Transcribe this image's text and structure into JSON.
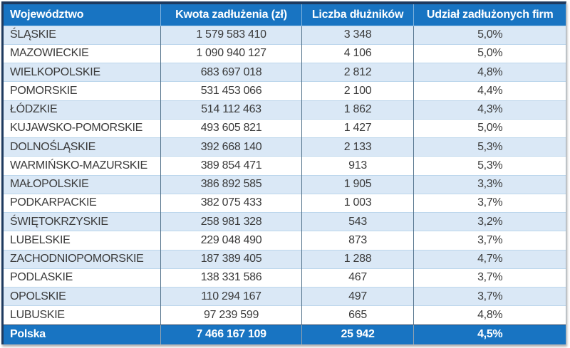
{
  "table": {
    "columns": [
      "Województwo",
      "Kwota zadłużenia (zł)",
      "Liczba dłużników",
      "Udział zadłużonych firm"
    ],
    "rows": [
      [
        "ŚLĄSKIE",
        "1 579 583 410",
        "3 348",
        "5,0%"
      ],
      [
        "MAZOWIECKIE",
        "1 090 940 127",
        "4 106",
        "5,0%"
      ],
      [
        "WIELKOPOLSKIE",
        "683 697 018",
        "2 812",
        "4,8%"
      ],
      [
        "POMORSKIE",
        "531 453 066",
        "2 100",
        "4,4%"
      ],
      [
        "ŁÓDZKIE",
        "514 112 463",
        "1 862",
        "4,3%"
      ],
      [
        "KUJAWSKO-POMORSKIE",
        "493 605 821",
        "1 427",
        "5,0%"
      ],
      [
        "DOLNOŚLĄSKIE",
        "392 668 140",
        "2 133",
        "5,3%"
      ],
      [
        "WARMIŃSKO-MAZURSKIE",
        "389 854 471",
        "913",
        "5,3%"
      ],
      [
        "MAŁOPOLSKIE",
        "386 892 585",
        "1 905",
        "3,3%"
      ],
      [
        "PODKARPACKIE",
        "382 075 433",
        "1 003",
        "3,7%"
      ],
      [
        "ŚWIĘTOKRZYSKIE",
        "258 981 328",
        "543",
        "3,2%"
      ],
      [
        "LUBELSKIE",
        "229 048 490",
        "873",
        "3,7%"
      ],
      [
        "ZACHODNIOPOMORSKIE",
        "187 389 405",
        "1 288",
        "4,7%"
      ],
      [
        "PODLASKIE",
        "138 331 586",
        "467",
        "3,7%"
      ],
      [
        "OPOLSKIE",
        "110 294 167",
        "497",
        "3,7%"
      ],
      [
        "LUBUSKIE",
        "97 239 599",
        "665",
        "4,8%"
      ]
    ],
    "footer": [
      "Polska",
      "7 466 167 109",
      "25 942",
      "4,5%"
    ]
  },
  "chart_data": {
    "type": "table",
    "title": "",
    "columns": [
      "Województwo",
      "Kwota zadłużenia (zł)",
      "Liczba dłużników",
      "Udział zadłużonych firm"
    ],
    "rows": [
      {
        "wojewodztwo": "ŚLĄSKIE",
        "kwota_zadluzenia_zl": 1579583410,
        "liczba_dluznikow": 3348,
        "udzial_zadluzonych_firm_pct": 5.0
      },
      {
        "wojewodztwo": "MAZOWIECKIE",
        "kwota_zadluzenia_zl": 1090940127,
        "liczba_dluznikow": 4106,
        "udzial_zadluzonych_firm_pct": 5.0
      },
      {
        "wojewodztwo": "WIELKOPOLSKIE",
        "kwota_zadluzenia_zl": 683697018,
        "liczba_dluznikow": 2812,
        "udzial_zadluzonych_firm_pct": 4.8
      },
      {
        "wojewodztwo": "POMORSKIE",
        "kwota_zadluzenia_zl": 531453066,
        "liczba_dluznikow": 2100,
        "udzial_zadluzonych_firm_pct": 4.4
      },
      {
        "wojewodztwo": "ŁÓDZKIE",
        "kwota_zadluzenia_zl": 514112463,
        "liczba_dluznikow": 1862,
        "udzial_zadluzonych_firm_pct": 4.3
      },
      {
        "wojewodztwo": "KUJAWSKO-POMORSKIE",
        "kwota_zadluzenia_zl": 493605821,
        "liczba_dluznikow": 1427,
        "udzial_zadluzonych_firm_pct": 5.0
      },
      {
        "wojewodztwo": "DOLNOŚLĄSKIE",
        "kwota_zadluzenia_zl": 392668140,
        "liczba_dluznikow": 2133,
        "udzial_zadluzonych_firm_pct": 5.3
      },
      {
        "wojewodztwo": "WARMIŃSKO-MAZURSKIE",
        "kwota_zadluzenia_zl": 389854471,
        "liczba_dluznikow": 913,
        "udzial_zadluzonych_firm_pct": 5.3
      },
      {
        "wojewodztwo": "MAŁOPOLSKIE",
        "kwota_zadluzenia_zl": 386892585,
        "liczba_dluznikow": 1905,
        "udzial_zadluzonych_firm_pct": 3.3
      },
      {
        "wojewodztwo": "PODKARPACKIE",
        "kwota_zadluzenia_zl": 382075433,
        "liczba_dluznikow": 1003,
        "udzial_zadluzonych_firm_pct": 3.7
      },
      {
        "wojewodztwo": "ŚWIĘTOKRZYSKIE",
        "kwota_zadluzenia_zl": 258981328,
        "liczba_dluznikow": 543,
        "udzial_zadluzonych_firm_pct": 3.2
      },
      {
        "wojewodztwo": "LUBELSKIE",
        "kwota_zadluzenia_zl": 229048490,
        "liczba_dluznikow": 873,
        "udzial_zadluzonych_firm_pct": 3.7
      },
      {
        "wojewodztwo": "ZACHODNIOPOMORSKIE",
        "kwota_zadluzenia_zl": 187389405,
        "liczba_dluznikow": 1288,
        "udzial_zadluzonych_firm_pct": 4.7
      },
      {
        "wojewodztwo": "PODLASKIE",
        "kwota_zadluzenia_zl": 138331586,
        "liczba_dluznikow": 467,
        "udzial_zadluzonych_firm_pct": 3.7
      },
      {
        "wojewodztwo": "OPOLSKIE",
        "kwota_zadluzenia_zl": 110294167,
        "liczba_dluznikow": 497,
        "udzial_zadluzonych_firm_pct": 3.7
      },
      {
        "wojewodztwo": "LUBUSKIE",
        "kwota_zadluzenia_zl": 97239599,
        "liczba_dluznikow": 665,
        "udzial_zadluzonych_firm_pct": 4.8
      }
    ],
    "total_row": {
      "wojewodztwo": "Polska",
      "kwota_zadluzenia_zl": 7466167109,
      "liczba_dluznikow": 25942,
      "udzial_zadluzonych_firm_pct": 4.5
    },
    "layout": {
      "banded_rows": true,
      "first_band_color": "#DAE8F6",
      "second_band_color": "#FFFFFF"
    }
  },
  "colors": {
    "header_bg": "#1874C2",
    "header_text": "#FFFFFF",
    "band_row_bg": "#DAE8F6",
    "plain_row_bg": "#FFFFFF",
    "row_text": "#3A3A3A",
    "outer_border": "#1E3A5F",
    "row_divider": "#BCD6EC",
    "column_divider": "#53738C"
  }
}
